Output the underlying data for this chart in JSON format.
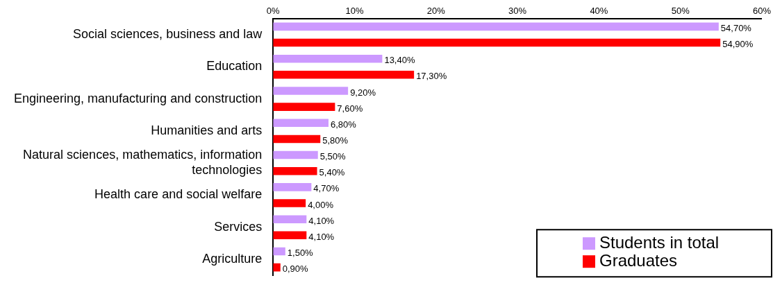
{
  "chart_data": {
    "type": "bar",
    "orientation": "horizontal",
    "categories": [
      "Social sciences, business and law",
      "Education",
      "Engineering, manufacturing and construction",
      "Humanities and arts",
      "Natural sciences, mathematics, information technologies",
      "Health care and social welfare",
      "Services",
      "Agriculture"
    ],
    "series": [
      {
        "name": "Students in total",
        "color": "#cc99ff",
        "values": [
          54.7,
          13.4,
          9.2,
          6.8,
          5.5,
          4.7,
          4.1,
          1.5
        ],
        "value_labels": [
          "54,70%",
          "13,40%",
          "9,20%",
          "6,80%",
          "5,50%",
          "4,70%",
          "4,10%",
          "1,50%"
        ]
      },
      {
        "name": "Graduates",
        "color": "#ff0000",
        "values": [
          54.9,
          17.3,
          7.6,
          5.8,
          5.4,
          4.0,
          4.1,
          0.9
        ],
        "value_labels": [
          "54,90%",
          "17,30%",
          "7,60%",
          "5,80%",
          "5,40%",
          "4,00%",
          "4,10%",
          "0,90%"
        ]
      }
    ],
    "xlim": [
      0,
      60
    ],
    "xticks": [
      {
        "value": 0,
        "label": "0%"
      },
      {
        "value": 10,
        "label": "10%"
      },
      {
        "value": 20,
        "label": "20%"
      },
      {
        "value": 30,
        "label": "30%"
      },
      {
        "value": 40,
        "label": "40%"
      },
      {
        "value": 50,
        "label": "50%"
      },
      {
        "value": 60,
        "label": "60%"
      }
    ],
    "grid": false,
    "legend": "bottom right"
  }
}
